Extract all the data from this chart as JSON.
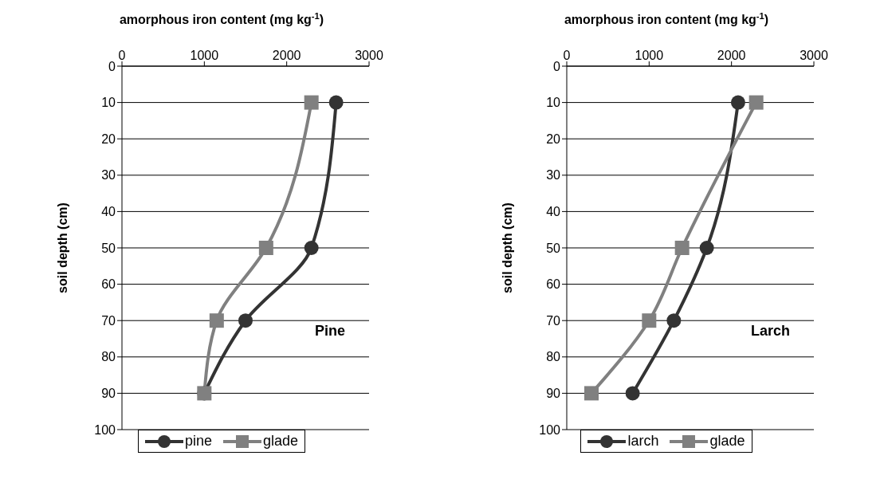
{
  "chart_data": [
    {
      "type": "line",
      "xlabel": "amorphous iron content (mg kg$^{-1}$)",
      "ylabel": "soil depth (cm)",
      "orientation": "horizontal",
      "x": [
        10,
        50,
        70,
        90
      ],
      "series": [
        {
          "name": "pine",
          "color": "#333333",
          "marker": "circle",
          "values": [
            2600,
            2300,
            1500,
            1000
          ]
        },
        {
          "name": "glade",
          "color": "#808080",
          "marker": "square",
          "values": [
            2300,
            1750,
            1150,
            1000
          ]
        }
      ],
      "xlim": [
        0,
        3000
      ],
      "xticks": [
        0,
        1000,
        2000,
        3000
      ],
      "ylim": [
        100,
        0
      ],
      "yticks": [
        0,
        10,
        20,
        30,
        40,
        50,
        60,
        70,
        80,
        90,
        100
      ],
      "grid": "y",
      "legend": "bottom",
      "annotations": [
        "Pine"
      ]
    },
    {
      "type": "line",
      "xlabel": "amorphous iron content (mg kg$^{-1}$)",
      "ylabel": "soil depth (cm)",
      "orientation": "horizontal",
      "x": [
        10,
        50,
        70,
        90
      ],
      "series": [
        {
          "name": "larch",
          "color": "#333333",
          "marker": "circle",
          "values": [
            2080,
            1700,
            1300,
            800
          ]
        },
        {
          "name": "glade",
          "color": "#808080",
          "marker": "square",
          "values": [
            2300,
            1400,
            1000,
            300
          ]
        }
      ],
      "xlim": [
        0,
        3000
      ],
      "xticks": [
        0,
        1000,
        2000,
        3000
      ],
      "ylim": [
        100,
        0
      ],
      "yticks": [
        0,
        10,
        20,
        30,
        40,
        50,
        60,
        70,
        80,
        90,
        100
      ],
      "grid": "y",
      "legend": "bottom",
      "annotations": [
        "Larch"
      ]
    }
  ]
}
